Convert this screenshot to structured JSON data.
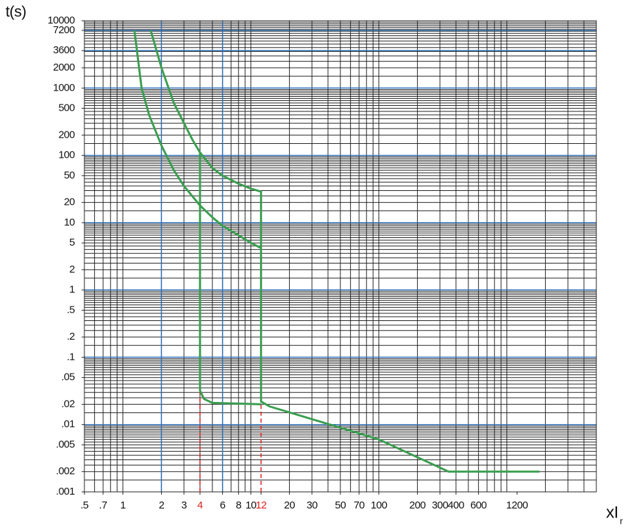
{
  "chart_data": {
    "type": "line",
    "ylabel": "t(s)",
    "xlabel": "xI",
    "xlabel_sub": "r",
    "xscale": "log",
    "yscale": "log",
    "xlim": [
      0.5,
      5000
    ],
    "ylim": [
      0.001,
      10000
    ],
    "xticks": [
      {
        "value": 0.5,
        "label": ".5"
      },
      {
        "value": 0.7,
        "label": ".7"
      },
      1,
      2,
      3,
      4,
      6,
      8,
      10,
      12,
      20,
      30,
      50,
      70,
      100,
      200,
      300,
      400,
      600,
      1200
    ],
    "yticks": [
      10000,
      7200,
      3600,
      2000,
      1000,
      500,
      200,
      100,
      50,
      20,
      10,
      5,
      2,
      1,
      {
        "value": 0.5,
        "label": ".5"
      },
      {
        "value": 0.2,
        "label": ".2"
      },
      {
        "value": 0.1,
        "label": ".1"
      },
      {
        "value": 0.05,
        "label": ".05"
      },
      {
        "value": 0.02,
        "label": ".02"
      },
      {
        "value": 0.01,
        "label": ".01"
      },
      {
        "value": 0.005,
        "label": ".005"
      },
      {
        "value": 0.002,
        "label": ".002"
      },
      {
        "value": 0.001,
        "label": ".001"
      }
    ],
    "minor_grid": true,
    "grid_color": "#222222",
    "major_color": "#2f6fb8",
    "major_x": [
      2,
      6
    ],
    "major_y": [
      7200,
      3600,
      1000,
      100,
      10,
      1,
      0.1,
      0.01
    ],
    "highlight_x": [
      4,
      12
    ],
    "highlight_color": "#e0201c",
    "series": [
      {
        "color": "#3a9e4f",
        "x": [
          1.65,
          2,
          2.5,
          3,
          3.5,
          4,
          5,
          6,
          8,
          10,
          12,
          12,
          14,
          50,
          100,
          350,
          1800
        ],
        "values": [
          7200,
          2000,
          600,
          300,
          170,
          110,
          65,
          50,
          38,
          32,
          29,
          0.022,
          0.0186,
          0.009,
          0.006,
          0.002,
          0.002
        ]
      },
      {
        "color": "#3a9e4f",
        "x": [
          1.23,
          1.4,
          1.6,
          2,
          2.5,
          3,
          4,
          5,
          6,
          8,
          10,
          12
        ],
        "values": [
          7200,
          1000,
          400,
          140,
          60,
          35,
          18,
          12,
          9,
          6.5,
          5,
          4.2
        ]
      },
      {
        "color": "#3a9e4f",
        "x": [
          4,
          4,
          4.3,
          5,
          8,
          12
        ],
        "values": [
          110,
          0.032,
          0.024,
          0.021,
          0.0205,
          0.02
        ]
      }
    ]
  }
}
